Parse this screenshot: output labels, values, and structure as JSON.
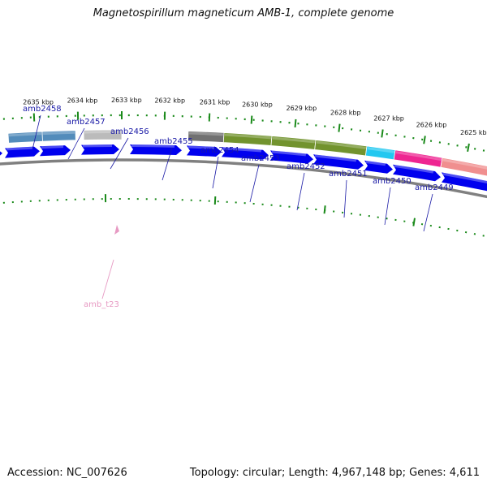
{
  "title": "Magnetospirillum magneticum AMB-1, complete genome",
  "accession": "Accession: NC_007626",
  "topology": "Topology: circular; Length: 4,967,148 bp; Genes: 4,611",
  "kbp_labels": [
    "2635 kbp",
    "2634 kbp",
    "2633 kbp",
    "2632 kbp",
    "2631 kbp",
    "2630 kbp",
    "2629 kbp",
    "2628 kbp",
    "2627 kbp",
    "2626 kbp",
    "2625 kbp"
  ],
  "gene_labels": [
    "amb2458",
    "amb2457",
    "amb2456",
    "amb2455",
    "amb2454",
    "amb2453",
    "amb2452",
    "amb2451",
    "amb2450",
    "amb2449"
  ],
  "rna_label": "amb_t23",
  "colors": {
    "cds_arrow": "#0000ee",
    "backbone": "#808080",
    "tick": "#1a8a1a",
    "gene_label": "#1a1aa6",
    "rna": "#e79ac3",
    "feature_colors": [
      "#4a86b8",
      "#4a86b8",
      "#b8b8b8",
      "#6a6a6a",
      "#6b8e23",
      "#6b8e23",
      "#6b8e23",
      "#18c6f0",
      "#ee1a8c",
      "#f08a8a"
    ]
  }
}
